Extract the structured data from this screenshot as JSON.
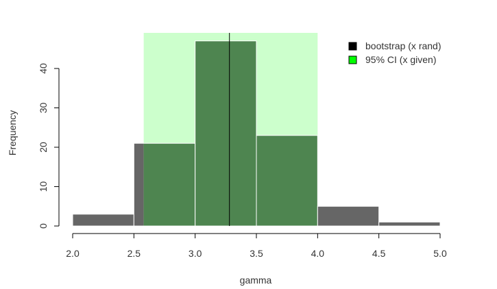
{
  "chart_data": {
    "type": "bar",
    "xlabel": "gamma",
    "ylabel": "Frequency",
    "xlim": [
      2.0,
      5.0
    ],
    "ylim": [
      0,
      47
    ],
    "x_ticks": [
      "2.0",
      "2.5",
      "3.0",
      "3.5",
      "4.0",
      "4.5",
      "5.0"
    ],
    "y_ticks": [
      "0",
      "10",
      "20",
      "30",
      "40"
    ],
    "bins": [
      {
        "x0": 2.0,
        "x1": 2.5,
        "count": 3
      },
      {
        "x0": 2.5,
        "x1": 3.0,
        "count": 21
      },
      {
        "x0": 3.0,
        "x1": 3.5,
        "count": 47
      },
      {
        "x0": 3.5,
        "x1": 4.0,
        "count": 23
      },
      {
        "x0": 4.0,
        "x1": 4.5,
        "count": 5
      },
      {
        "x0": 4.5,
        "x1": 5.0,
        "count": 1
      }
    ],
    "ci": {
      "lower": 2.58,
      "upper": 4.0
    },
    "estimate_line": 3.28,
    "legend": [
      {
        "label": "bootstrap (x rand)",
        "color": "#000000"
      },
      {
        "label": "95% CI (x given)",
        "color": "#00ff00"
      }
    ],
    "legend_position": "top-right",
    "colors": {
      "bar": "#666666",
      "ci_band": "#ccffcc",
      "overlap": "#4e8550",
      "bar_border": "#ffffff",
      "line": "#000000"
    }
  }
}
